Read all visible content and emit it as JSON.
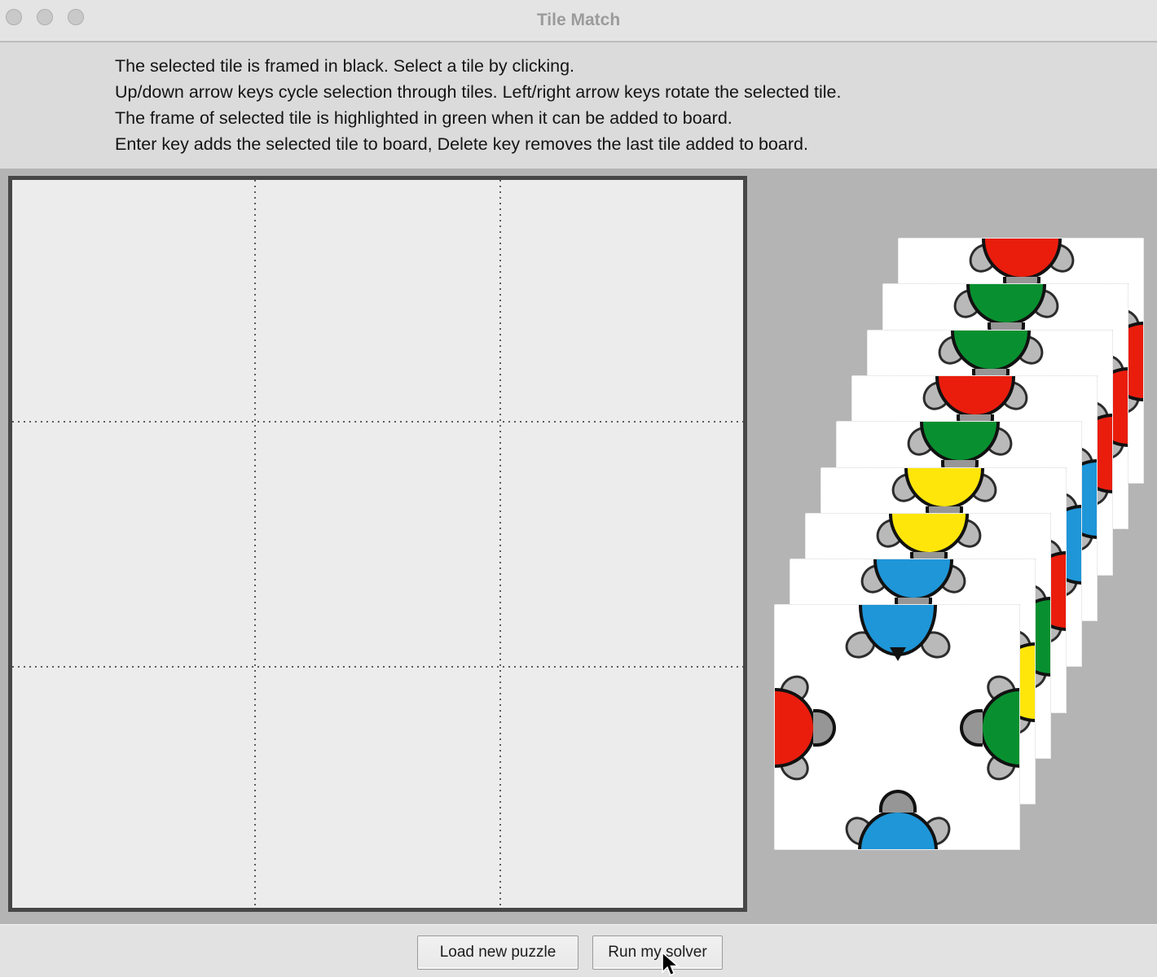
{
  "window": {
    "title": "Tile Match"
  },
  "titlebar": {
    "traffic_lights": [
      "close",
      "minimize",
      "zoom"
    ]
  },
  "instructions": {
    "lines": [
      "The selected tile is framed in black. Select a tile by clicking.",
      "Up/down arrow keys cycle selection through tiles. Left/right arrow keys rotate the selected tile.",
      "The frame of selected tile is highlighted in green when it can be added to board.",
      "Enter key adds the selected tile to board, Delete key removes the last tile added to board."
    ]
  },
  "board": {
    "rows": 3,
    "cols": 3,
    "tiles_placed": 0
  },
  "tile_stack": {
    "count": 9,
    "order": "back-to-front",
    "tiles": [
      {
        "top": "red",
        "right": "red"
      },
      {
        "top": "green",
        "right": "red"
      },
      {
        "top": "green",
        "right": "red"
      },
      {
        "top": "red",
        "right": "blue"
      },
      {
        "top": "green",
        "right": "blue"
      },
      {
        "top": "yellow",
        "right": "red"
      },
      {
        "top": "yellow",
        "right": "green"
      },
      {
        "top": "blue",
        "right": "yellow"
      },
      {
        "top": "blue",
        "top_half": "rear",
        "right": "green",
        "left": "red",
        "bottom": "blue"
      }
    ]
  },
  "colors": {
    "red": "#ea1d0d",
    "green": "#089030",
    "yellow": "#ffe60a",
    "blue": "#1e96d8",
    "head": "#969696",
    "feet": "#b9b9b9"
  },
  "buttons": [
    {
      "label": "Load new puzzle"
    },
    {
      "label": "Run my solver"
    }
  ]
}
